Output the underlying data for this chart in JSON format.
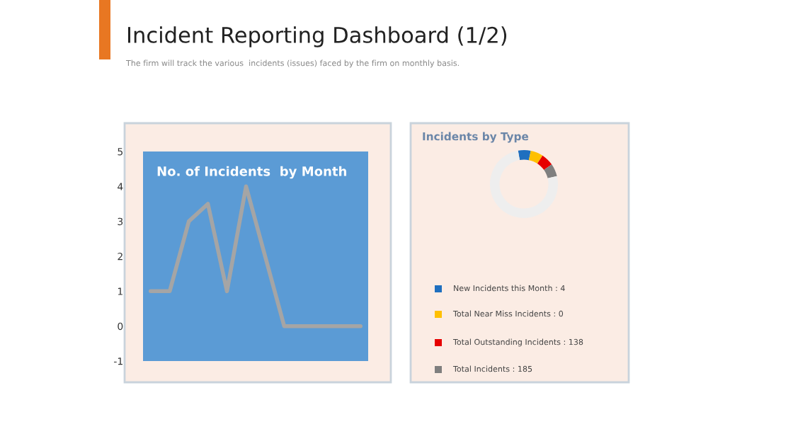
{
  "chart_data": [
    {
      "type": "line",
      "title": "No. of Incidents  by Month",
      "categories": [
        null,
        null,
        null,
        null,
        null,
        null,
        null,
        null,
        null,
        null,
        null,
        null
      ],
      "series": [
        {
          "color": "#a5a5a5",
          "values": [
            1,
            1,
            3,
            3.5,
            1,
            4,
            2,
            0,
            0,
            0,
            0,
            0
          ]
        }
      ],
      "ylim": [
        -1,
        5
      ],
      "yticks": [
        -1,
        0,
        1,
        2,
        3,
        4,
        5
      ],
      "grid": false,
      "legend": false,
      "marker": "none",
      "line_style": "solid",
      "annotations": [
        "Incident Reporting Dashboard (1/2)",
        "The firm will track the various  incidents (issues) faced by the firm on monthly basis."
      ]
    },
    {
      "type": "other",
      "title": "Incidents by Type",
      "annotations": [
        "New Incidents this Month : 4",
        "Total Near Miss Incidents : 0",
        "Total Outstanding Incidents : 138",
        "Total Incidents : 185"
      ]
    }
  ]
}
